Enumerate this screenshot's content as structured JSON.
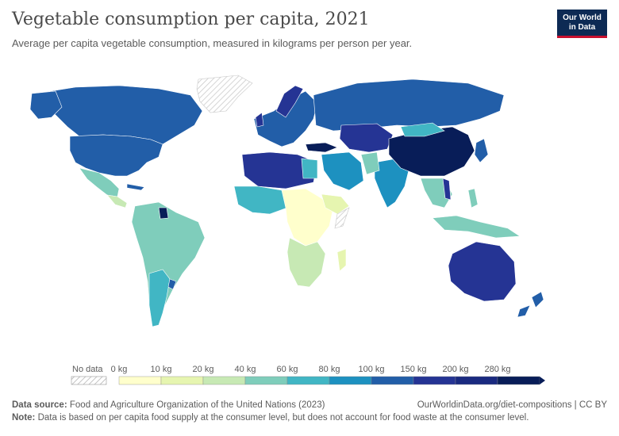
{
  "header": {
    "title": "Vegetable consumption per capita, 2021",
    "subtitle": "Average per capita vegetable consumption, measured in kilograms per person per year."
  },
  "logo": {
    "line1": "Our World",
    "line2": "in Data"
  },
  "legend": {
    "no_data_label": "No data",
    "bins": [
      {
        "label": "0 kg",
        "color": "#ffffcc"
      },
      {
        "label": "10 kg",
        "color": "#e6f5b0"
      },
      {
        "label": "20 kg",
        "color": "#c7e9b4"
      },
      {
        "label": "40 kg",
        "color": "#7fcdbb"
      },
      {
        "label": "60 kg",
        "color": "#41b6c4"
      },
      {
        "label": "80 kg",
        "color": "#1d91c0"
      },
      {
        "label": "100 kg",
        "color": "#225ea8"
      },
      {
        "label": "150 kg",
        "color": "#253494"
      },
      {
        "label": "200 kg",
        "color": "#1a2a80"
      },
      {
        "label": "280 kg",
        "color": "#081d58"
      }
    ]
  },
  "footer": {
    "source_label": "Data source:",
    "source_text": "Food and Agriculture Organization of the United Nations (2023)",
    "credit": "OurWorldinData.org/diet-compositions | CC BY",
    "note_label": "Note:",
    "note_text": "Data is based on per capita food supply at the consumer level, but does not account for food waste at the consumer level."
  }
}
